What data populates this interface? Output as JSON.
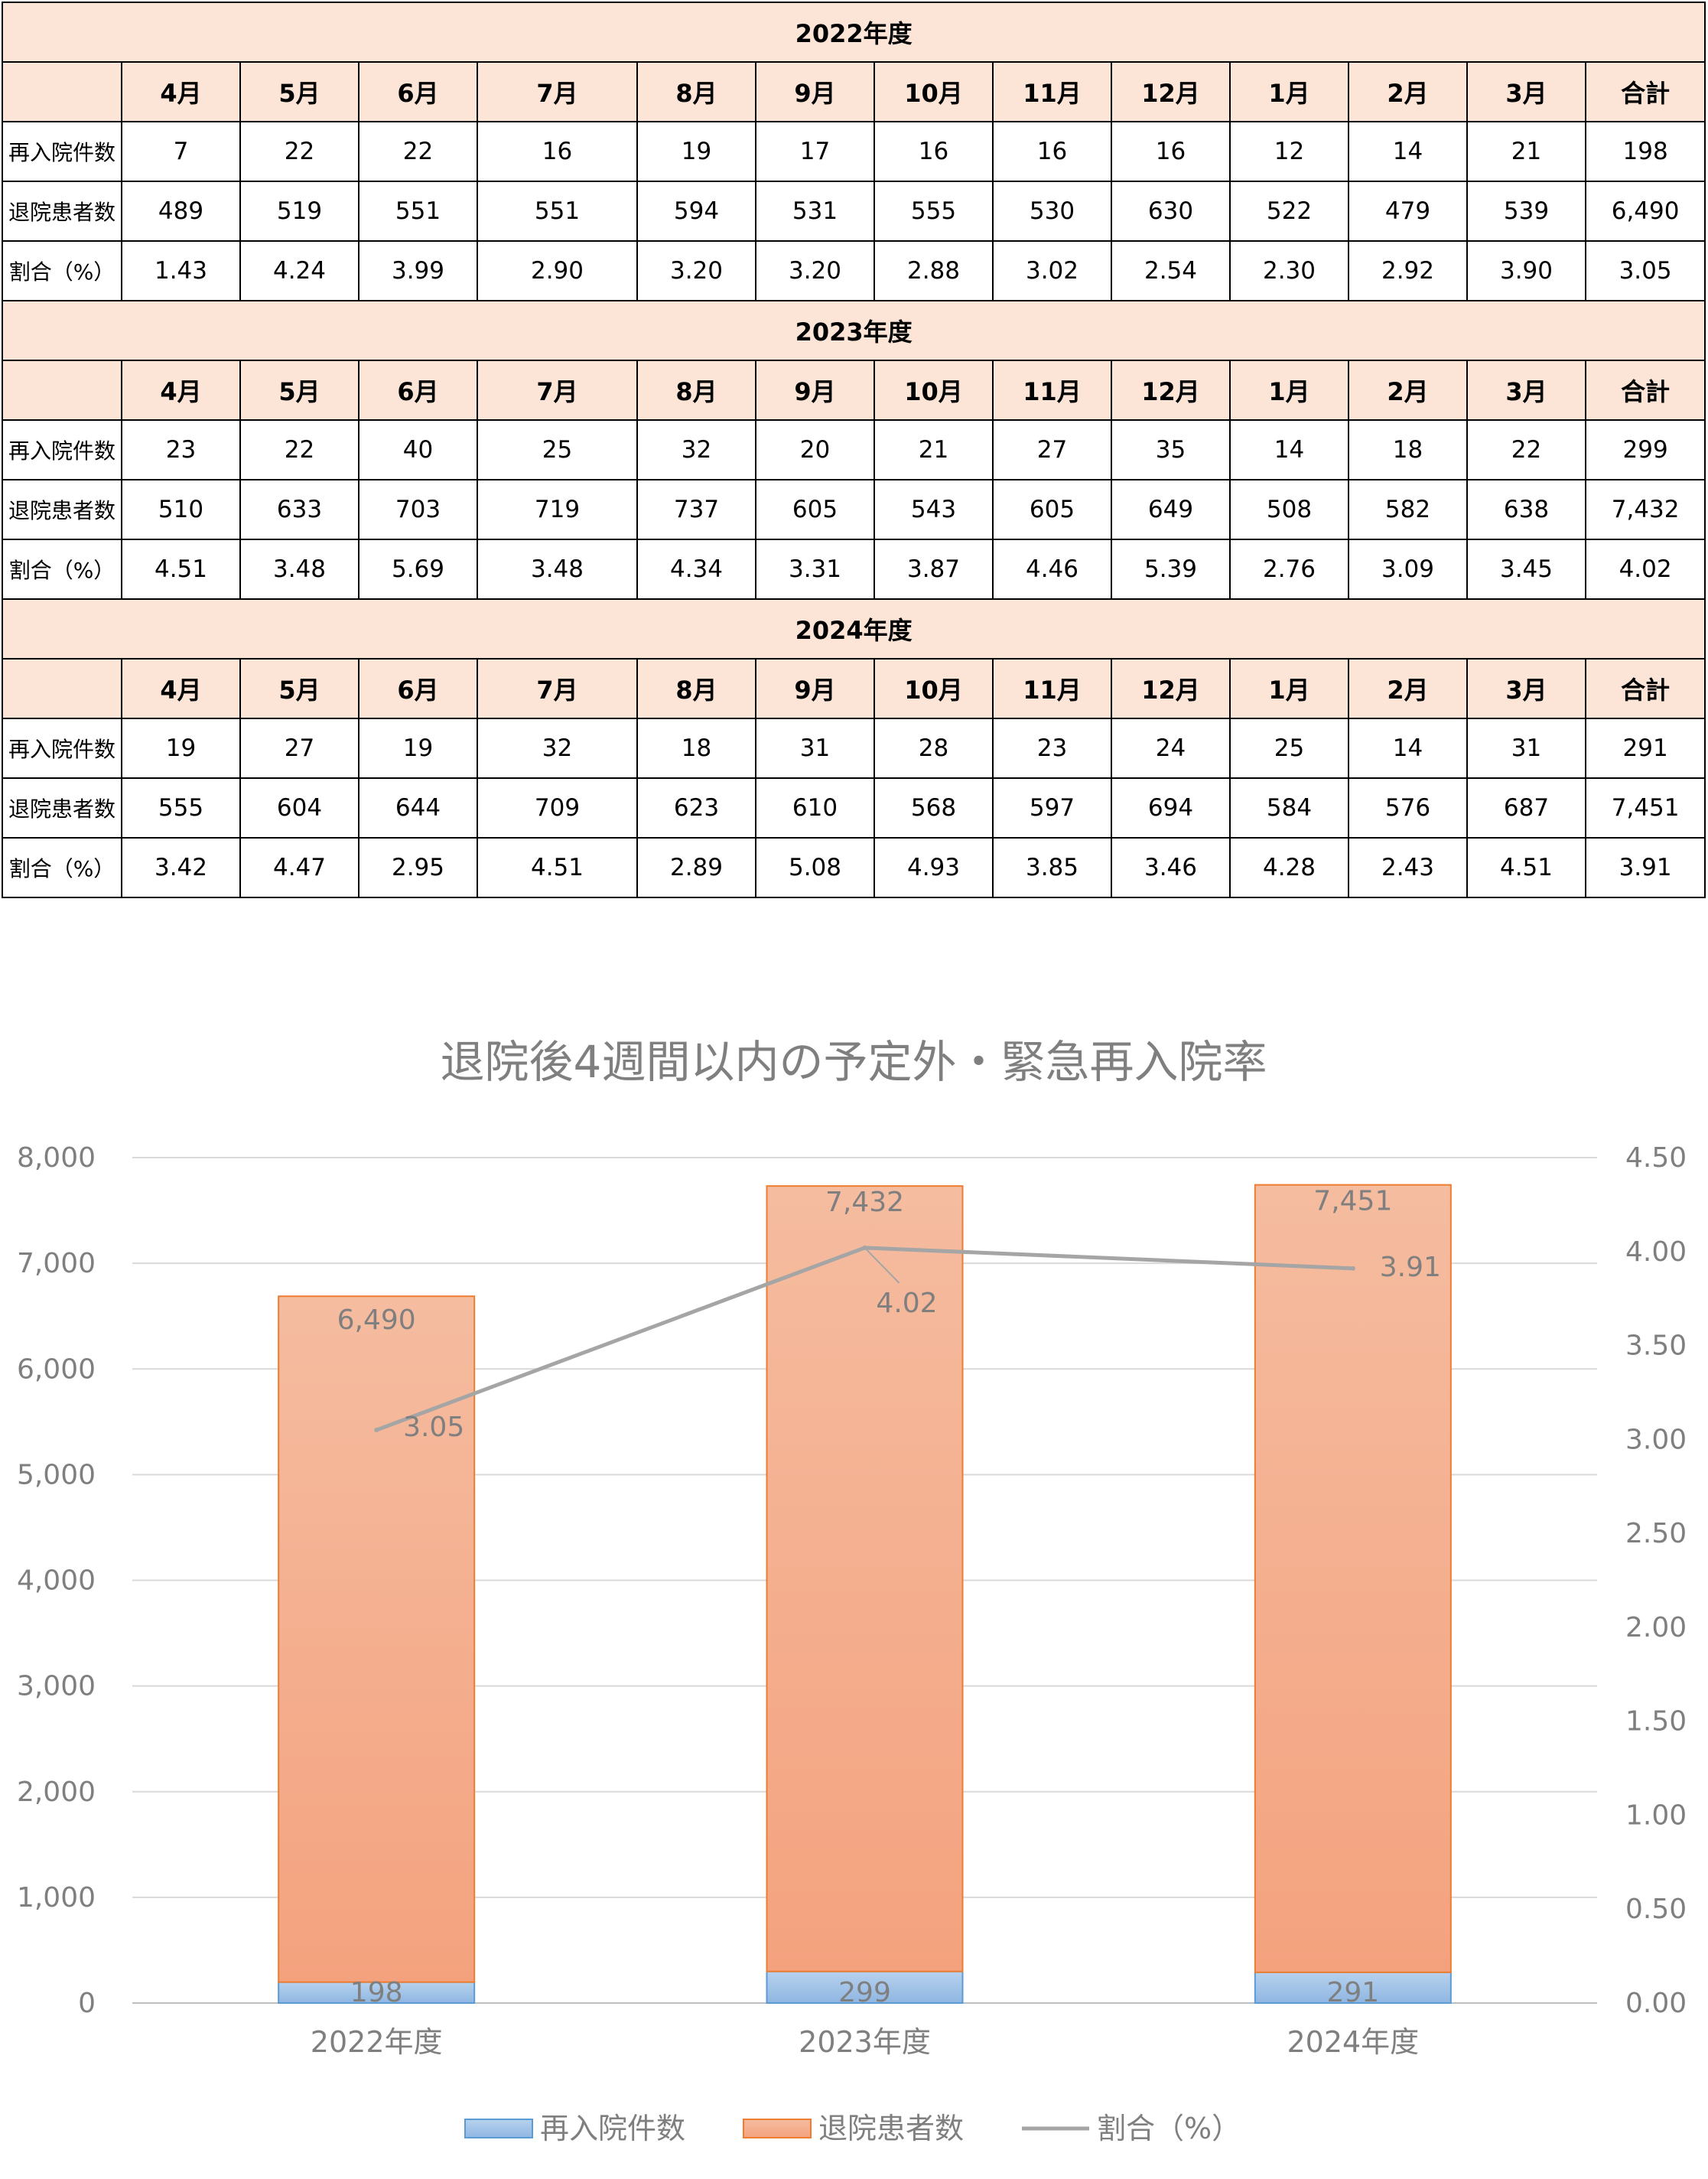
{
  "table": {
    "months": [
      "4月",
      "5月",
      "6月",
      "7月",
      "8月",
      "9月",
      "10月",
      "11月",
      "12月",
      "1月",
      "2月",
      "3月",
      "合計"
    ],
    "row_labels": [
      "再入院件数",
      "退院患者数",
      "割合（%）"
    ],
    "years": [
      {
        "title": "2022年度",
        "rows": [
          [
            "7",
            "22",
            "22",
            "16",
            "19",
            "17",
            "16",
            "16",
            "16",
            "12",
            "14",
            "21",
            "198"
          ],
          [
            "489",
            "519",
            "551",
            "551",
            "594",
            "531",
            "555",
            "530",
            "630",
            "522",
            "479",
            "539",
            "6,490"
          ],
          [
            "1.43",
            "4.24",
            "3.99",
            "2.90",
            "3.20",
            "3.20",
            "2.88",
            "3.02",
            "2.54",
            "2.30",
            "2.92",
            "3.90",
            "3.05"
          ]
        ]
      },
      {
        "title": "2023年度",
        "rows": [
          [
            "23",
            "22",
            "40",
            "25",
            "32",
            "20",
            "21",
            "27",
            "35",
            "14",
            "18",
            "22",
            "299"
          ],
          [
            "510",
            "633",
            "703",
            "719",
            "737",
            "605",
            "543",
            "605",
            "649",
            "508",
            "582",
            "638",
            "7,432"
          ],
          [
            "4.51",
            "3.48",
            "5.69",
            "3.48",
            "4.34",
            "3.31",
            "3.87",
            "4.46",
            "5.39",
            "2.76",
            "3.09",
            "3.45",
            "4.02"
          ]
        ]
      },
      {
        "title": "2024年度",
        "rows": [
          [
            "19",
            "27",
            "19",
            "32",
            "18",
            "31",
            "28",
            "23",
            "24",
            "25",
            "14",
            "31",
            "291"
          ],
          [
            "555",
            "604",
            "644",
            "709",
            "623",
            "610",
            "568",
            "597",
            "694",
            "584",
            "576",
            "687",
            "7,451"
          ],
          [
            "3.42",
            "4.47",
            "2.95",
            "4.51",
            "2.89",
            "5.08",
            "4.93",
            "3.85",
            "3.46",
            "4.28",
            "2.43",
            "4.51",
            "3.91"
          ]
        ]
      }
    ]
  },
  "chart_data": {
    "type": "bar",
    "stacked": true,
    "title": "退院後4週間以内の予定外・緊急再入院率",
    "categories": [
      "2022年度",
      "2023年度",
      "2024年度"
    ],
    "series": [
      {
        "name": "再入院件数",
        "type": "bar",
        "axis": "left",
        "values": [
          198,
          299,
          291
        ],
        "labels": [
          "198",
          "299",
          "291"
        ],
        "color": "#9dc3e6"
      },
      {
        "name": "退院患者数",
        "type": "bar",
        "axis": "left",
        "values": [
          6490,
          7432,
          7451
        ],
        "labels": [
          "6,490",
          "7,432",
          "7,451"
        ],
        "color": "#f4b183"
      },
      {
        "name": "割合（%）",
        "type": "line",
        "axis": "right",
        "values": [
          3.05,
          4.02,
          3.91
        ],
        "labels": [
          "3.05",
          "4.02",
          "3.91"
        ],
        "color": "#a5a5a5"
      }
    ],
    "y_left": {
      "min": 0,
      "max": 8000,
      "ticks": [
        "0",
        "1,000",
        "2,000",
        "3,000",
        "4,000",
        "5,000",
        "6,000",
        "7,000",
        "8,000"
      ]
    },
    "y_right": {
      "min": 0,
      "max": 4.5,
      "ticks": [
        "0.00",
        "0.50",
        "1.00",
        "1.50",
        "2.00",
        "2.50",
        "3.00",
        "3.50",
        "4.00",
        "4.50"
      ]
    },
    "grid": true,
    "legend_position": "bottom"
  }
}
